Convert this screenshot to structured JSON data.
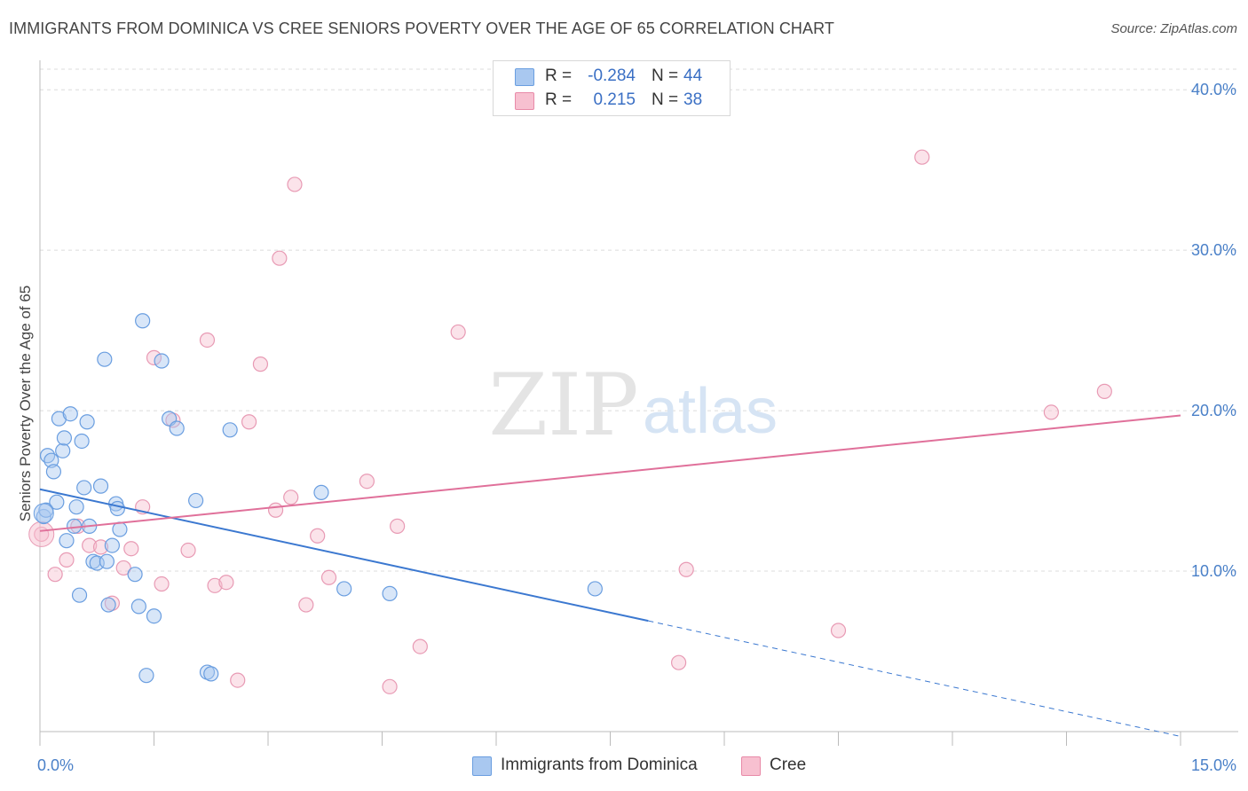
{
  "title": "IMMIGRANTS FROM DOMINICA VS CREE SENIORS POVERTY OVER THE AGE OF 65 CORRELATION CHART",
  "source": "Source: ZipAtlas.com",
  "watermark": {
    "zip": "ZIP",
    "atlas": "atlas"
  },
  "legend_top": [
    {
      "r_label": "R =",
      "r_value": "-0.284",
      "n_label": "N =",
      "n_value": "44",
      "color": "#a9c8f0",
      "border": "#6a9ee0"
    },
    {
      "r_label": "R =",
      "r_value": "0.215",
      "n_label": "N =",
      "n_value": "38",
      "color": "#f7c0d0",
      "border": "#e88aa8"
    }
  ],
  "legend_bottom": [
    {
      "label": "Immigrants from Dominica",
      "color": "#a9c8f0",
      "border": "#6a9ee0"
    },
    {
      "label": "Cree",
      "color": "#f7c0d0",
      "border": "#e88aa8"
    }
  ],
  "colors": {
    "blue": "#3b78d0",
    "pink": "#e0709a",
    "blue_fill": "#a9c8f0",
    "pink_fill": "#f7c0d0"
  },
  "chart_data": {
    "type": "scatter",
    "title": "IMMIGRANTS FROM DOMINICA VS CREE SENIORS POVERTY OVER THE AGE OF 65 CORRELATION CHART",
    "xlabel": "",
    "ylabel": "Seniors Poverty Over the Age of 65",
    "xlim": [
      0,
      15
    ],
    "ylim": [
      0,
      42
    ],
    "x_tick_labels": [
      "0.0%",
      "15.0%"
    ],
    "y_ticks": [
      10,
      20,
      30,
      40
    ],
    "y_tick_labels": [
      "10.0%",
      "20.0%",
      "30.0%",
      "40.0%"
    ],
    "grid": true,
    "legend_position": "top-center",
    "series": [
      {
        "name": "Immigrants from Dominica",
        "points": [
          [
            0.05,
            13.4
          ],
          [
            0.08,
            13.8
          ],
          [
            0.1,
            17.2
          ],
          [
            0.15,
            16.9
          ],
          [
            0.18,
            16.2
          ],
          [
            0.22,
            14.3
          ],
          [
            0.25,
            19.5
          ],
          [
            0.3,
            17.5
          ],
          [
            0.32,
            18.3
          ],
          [
            0.35,
            11.9
          ],
          [
            0.4,
            19.8
          ],
          [
            0.45,
            12.8
          ],
          [
            0.48,
            14.0
          ],
          [
            0.52,
            8.5
          ],
          [
            0.55,
            18.1
          ],
          [
            0.58,
            15.2
          ],
          [
            0.62,
            19.3
          ],
          [
            0.65,
            12.8
          ],
          [
            0.7,
            10.6
          ],
          [
            0.75,
            10.5
          ],
          [
            0.8,
            15.3
          ],
          [
            0.85,
            23.2
          ],
          [
            0.88,
            10.6
          ],
          [
            0.9,
            7.9
          ],
          [
            0.95,
            11.6
          ],
          [
            1.0,
            14.2
          ],
          [
            1.02,
            13.9
          ],
          [
            1.05,
            12.6
          ],
          [
            1.25,
            9.8
          ],
          [
            1.3,
            7.8
          ],
          [
            1.35,
            25.6
          ],
          [
            1.4,
            3.5
          ],
          [
            1.5,
            7.2
          ],
          [
            1.6,
            23.1
          ],
          [
            1.7,
            19.5
          ],
          [
            1.8,
            18.9
          ],
          [
            2.05,
            14.4
          ],
          [
            2.2,
            3.7
          ],
          [
            2.25,
            3.6
          ],
          [
            2.5,
            18.8
          ],
          [
            3.7,
            14.9
          ],
          [
            4.0,
            8.9
          ],
          [
            4.6,
            8.6
          ],
          [
            7.3,
            8.9
          ]
        ],
        "trend": {
          "x": [
            0,
            8.0
          ],
          "y": [
            15.1,
            6.9
          ],
          "dashed_to": [
            15,
            -0.3
          ]
        }
      },
      {
        "name": "Cree",
        "points": [
          [
            0.02,
            12.3
          ],
          [
            0.2,
            9.8
          ],
          [
            0.35,
            10.7
          ],
          [
            0.5,
            12.8
          ],
          [
            0.65,
            11.6
          ],
          [
            0.8,
            11.5
          ],
          [
            0.95,
            8.0
          ],
          [
            1.1,
            10.2
          ],
          [
            1.2,
            11.4
          ],
          [
            1.35,
            14.0
          ],
          [
            1.5,
            23.3
          ],
          [
            1.6,
            9.2
          ],
          [
            1.75,
            19.4
          ],
          [
            1.95,
            11.3
          ],
          [
            2.2,
            24.4
          ],
          [
            2.3,
            9.1
          ],
          [
            2.45,
            9.3
          ],
          [
            2.6,
            3.2
          ],
          [
            2.75,
            19.3
          ],
          [
            2.9,
            22.9
          ],
          [
            3.1,
            13.8
          ],
          [
            3.15,
            29.5
          ],
          [
            3.3,
            14.6
          ],
          [
            3.35,
            34.1
          ],
          [
            3.5,
            7.9
          ],
          [
            3.65,
            12.2
          ],
          [
            3.8,
            9.6
          ],
          [
            4.3,
            15.6
          ],
          [
            4.6,
            2.8
          ],
          [
            4.7,
            12.8
          ],
          [
            5.0,
            5.3
          ],
          [
            5.5,
            24.9
          ],
          [
            8.4,
            4.3
          ],
          [
            8.5,
            10.1
          ],
          [
            10.5,
            6.3
          ],
          [
            11.6,
            35.8
          ],
          [
            13.3,
            19.9
          ],
          [
            14.0,
            21.2
          ]
        ],
        "trend": {
          "x": [
            0,
            15
          ],
          "y": [
            12.5,
            19.7
          ]
        }
      }
    ]
  }
}
